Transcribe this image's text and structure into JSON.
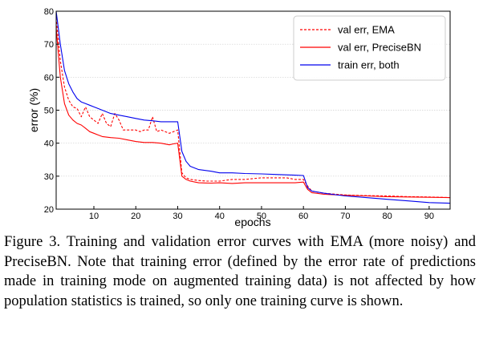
{
  "chart_data": {
    "type": "line",
    "xlabel": "epochs",
    "ylabel": "error (%)",
    "xlim": [
      1,
      95
    ],
    "ylim": [
      20,
      80
    ],
    "xticks": [
      10,
      20,
      30,
      40,
      50,
      60,
      70,
      80,
      90
    ],
    "yticks": [
      20,
      30,
      40,
      50,
      60,
      70,
      80
    ],
    "grid": "horizontal",
    "legend_position": "top-right",
    "series": [
      {
        "name": "val err, EMA",
        "color": "#ff0000",
        "style": "dashed",
        "x": [
          1,
          2,
          3,
          4,
          5,
          6,
          7,
          8,
          9,
          10,
          11,
          12,
          13,
          14,
          15,
          16,
          17,
          18,
          19,
          20,
          21,
          22,
          23,
          24,
          25,
          26,
          27,
          28,
          29,
          30,
          31,
          32,
          33,
          35,
          37,
          40,
          43,
          46,
          50,
          53,
          56,
          58,
          60,
          61,
          62,
          65,
          70,
          75,
          80,
          85,
          90,
          95
        ],
        "y": [
          78,
          65,
          57,
          53,
          51,
          50.5,
          48,
          51,
          48,
          47,
          46,
          49,
          46,
          45,
          49,
          47,
          44,
          44,
          44,
          44,
          43.5,
          44,
          44,
          48,
          43.5,
          44,
          43.5,
          43,
          43.5,
          44,
          31,
          29.5,
          29,
          28.7,
          28.5,
          28.5,
          29,
          29,
          29.5,
          29.5,
          29.5,
          29,
          29,
          27,
          25.5,
          24.8,
          24.3,
          24.1,
          24,
          23.8,
          23.7,
          23.5
        ]
      },
      {
        "name": "val err, PreciseBN",
        "color": "#ff0000",
        "style": "solid",
        "x": [
          1,
          2,
          3,
          4,
          5,
          6,
          7,
          8,
          9,
          10,
          11,
          12,
          14,
          16,
          18,
          20,
          22,
          24,
          26,
          28,
          29,
          30,
          31,
          32,
          33,
          35,
          38,
          40,
          43,
          46,
          50,
          54,
          58,
          60,
          61,
          62,
          65,
          70,
          75,
          80,
          85,
          90,
          95
        ],
        "y": [
          75,
          60,
          52,
          48.5,
          47,
          46,
          45.5,
          44.5,
          43.5,
          43,
          42.5,
          42,
          41.7,
          41.5,
          41,
          40.5,
          40.2,
          40.2,
          40,
          39.5,
          39.8,
          40,
          30,
          29,
          28.5,
          28,
          27.9,
          28,
          27.8,
          28,
          28,
          28,
          28,
          28.2,
          26,
          25,
          24.5,
          24.2,
          24,
          23.8,
          23.7,
          23.6,
          23.5
        ]
      },
      {
        "name": "train err, both",
        "color": "#0000ee",
        "style": "solid",
        "x": [
          1,
          2,
          3,
          4,
          5,
          6,
          7,
          8,
          9,
          10,
          11,
          12,
          14,
          16,
          18,
          20,
          22,
          24,
          26,
          28,
          30,
          31,
          32,
          33,
          35,
          38,
          40,
          43,
          46,
          50,
          54,
          58,
          60,
          61,
          62,
          65,
          70,
          75,
          80,
          85,
          90,
          95
        ],
        "y": [
          80,
          70,
          62,
          58,
          55.5,
          53.5,
          52.5,
          52,
          51.5,
          51,
          50.5,
          50,
          49,
          48.5,
          48,
          47.5,
          47,
          46.8,
          46.5,
          46.5,
          46.5,
          37.5,
          34.5,
          33,
          32,
          31.5,
          31,
          31,
          30.8,
          30.7,
          30.5,
          30.3,
          30.2,
          26.5,
          25.5,
          24.8,
          24,
          23.5,
          23,
          22.5,
          22,
          21.8
        ]
      }
    ]
  },
  "caption": "Figure 3. Training and validation error curves with EMA (more noisy) and PreciseBN. Note that training error (defined by the error rate of predictions made in training mode on augmented training data) is not affected by how population statistics is trained, so only one training curve is shown."
}
